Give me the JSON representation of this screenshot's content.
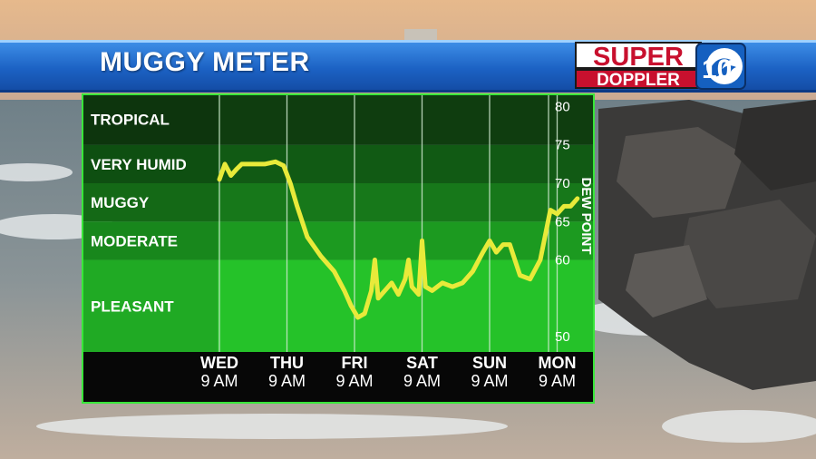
{
  "header": {
    "title": "MUGGY METER",
    "logo_top": "SUPER",
    "logo_bottom": "DOPPLER",
    "logo_number": "10"
  },
  "colors": {
    "header_blue": "#1c62c4",
    "band_tropical": "#0f3d0f",
    "band_very_humid": "#115a14",
    "band_muggy": "#17781a",
    "band_moderate": "#1c9a20",
    "band_pleasant": "#25c229",
    "line": "#e8ea3a",
    "border": "#39e63a"
  },
  "chart_data": {
    "type": "line",
    "title": "MUGGY METER",
    "ylabel": "DEW POINT",
    "ylim": [
      48,
      81
    ],
    "yticks": [
      50,
      60,
      65,
      70,
      75,
      80
    ],
    "categories_bands": [
      {
        "label": "TROPICAL",
        "min": 75,
        "max": 81
      },
      {
        "label": "VERY HUMID",
        "min": 70,
        "max": 75
      },
      {
        "label": "MUGGY",
        "min": 65,
        "max": 70
      },
      {
        "label": "MODERATE",
        "min": 60,
        "max": 65
      },
      {
        "label": "PLEASANT",
        "min": 48,
        "max": 60
      }
    ],
    "x_ticks": [
      {
        "day": "WED",
        "time": "9 AM",
        "index": 0
      },
      {
        "day": "THU",
        "time": "9 AM",
        "index": 1
      },
      {
        "day": "FRI",
        "time": "9 AM",
        "index": 2
      },
      {
        "day": "SAT",
        "time": "9 AM",
        "index": 3
      },
      {
        "day": "SUN",
        "time": "9 AM",
        "index": 4
      },
      {
        "day": "MON",
        "time": "9 AM",
        "index": 5
      }
    ],
    "series": [
      {
        "x": [
          0.0,
          0.08,
          0.17,
          0.25,
          0.33,
          0.5,
          0.67,
          0.83,
          0.95,
          1.05,
          1.15,
          1.3,
          1.5,
          1.7,
          1.85,
          1.95,
          2.05,
          2.15,
          2.25,
          2.3,
          2.35,
          2.45,
          2.55,
          2.65,
          2.75,
          2.8,
          2.85,
          2.95,
          3.0,
          3.05,
          3.15,
          3.3,
          3.45,
          3.6,
          3.75,
          3.9,
          4.0,
          4.1,
          4.2,
          4.3,
          4.45,
          4.6,
          4.75,
          4.9,
          5.0,
          5.1,
          5.2,
          5.3
        ],
        "y": [
          70.5,
          72.5,
          71.0,
          71.8,
          72.5,
          72.5,
          72.5,
          72.8,
          72.3,
          70.0,
          67.0,
          63.0,
          60.5,
          58.5,
          56.0,
          54.0,
          52.5,
          53.0,
          56.0,
          60.0,
          55.0,
          56.0,
          57.0,
          55.5,
          57.5,
          60.0,
          56.5,
          55.5,
          62.5,
          56.5,
          56.0,
          57.0,
          56.5,
          57.0,
          58.5,
          61.0,
          62.5,
          61.0,
          62.0,
          62.0,
          58.0,
          57.5,
          60.0,
          66.5,
          66.0,
          67.0,
          67.0,
          68.0
        ]
      }
    ]
  }
}
